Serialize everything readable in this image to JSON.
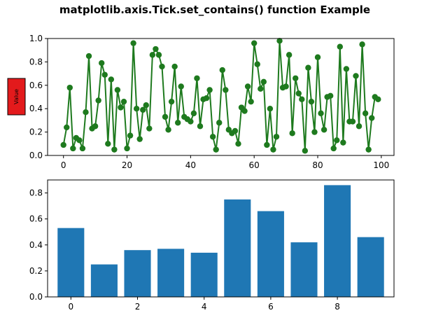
{
  "figure": {
    "title": "matplotlib.axis.Tick.set_contains() function Example",
    "ylabel_box": {
      "text": "Value",
      "face_color": "#e31a1c",
      "edge_color": "#000000"
    }
  },
  "chart_data": [
    {
      "type": "line",
      "name": "line-chart",
      "color": "#1e7a1e",
      "marker": "circle",
      "xlim": [
        -5,
        104
      ],
      "ylim": [
        0,
        1.0
      ],
      "xticks": [
        0,
        20,
        40,
        60,
        80,
        100
      ],
      "xtick_labels": [
        "0",
        "20",
        "40",
        "60",
        "80",
        "100"
      ],
      "yticks": [
        0.0,
        0.2,
        0.4,
        0.6,
        0.8,
        1.0
      ],
      "ytick_labels": [
        "0.0",
        "0.2",
        "0.4",
        "0.6",
        "0.8",
        "1.0"
      ],
      "grid": false,
      "series": [
        {
          "x": [
            0,
            1,
            2,
            3,
            4,
            5,
            6,
            7,
            8,
            9,
            10,
            11,
            12,
            13,
            14,
            15,
            16,
            17,
            18,
            19,
            20,
            21,
            22,
            23,
            24,
            25,
            26,
            27,
            28,
            29,
            30,
            31,
            32,
            33,
            34,
            35,
            36,
            37,
            38,
            39,
            40,
            41,
            42,
            43,
            44,
            45,
            46,
            47,
            48,
            49,
            50,
            51,
            52,
            53,
            54,
            55,
            56,
            57,
            58,
            59,
            60,
            61,
            62,
            63,
            64,
            65,
            66,
            67,
            68,
            69,
            70,
            71,
            72,
            73,
            74,
            75,
            76,
            77,
            78,
            79,
            80,
            81,
            82,
            83,
            84,
            85,
            86,
            87,
            88,
            89,
            90,
            91,
            92,
            93,
            94,
            95,
            96,
            97,
            98,
            99
          ],
          "y": [
            0.09,
            0.24,
            0.58,
            0.06,
            0.15,
            0.13,
            0.06,
            0.37,
            0.85,
            0.23,
            0.25,
            0.47,
            0.79,
            0.69,
            0.1,
            0.65,
            0.05,
            0.56,
            0.41,
            0.46,
            0.06,
            0.17,
            0.96,
            0.4,
            0.14,
            0.39,
            0.43,
            0.23,
            0.86,
            0.91,
            0.86,
            0.76,
            0.33,
            0.22,
            0.46,
            0.76,
            0.28,
            0.59,
            0.33,
            0.31,
            0.29,
            0.36,
            0.66,
            0.25,
            0.48,
            0.49,
            0.56,
            0.16,
            0.05,
            0.28,
            0.73,
            0.56,
            0.22,
            0.19,
            0.21,
            0.1,
            0.41,
            0.38,
            0.59,
            0.46,
            0.96,
            0.78,
            0.57,
            0.63,
            0.09,
            0.4,
            0.05,
            0.16,
            0.98,
            0.58,
            0.59,
            0.86,
            0.19,
            0.66,
            0.53,
            0.48,
            0.04,
            0.75,
            0.46,
            0.2,
            0.84,
            0.36,
            0.22,
            0.5,
            0.51,
            0.06,
            0.13,
            0.93,
            0.11,
            0.74,
            0.29,
            0.29,
            0.68,
            0.25,
            0.95,
            0.36,
            0.05,
            0.32,
            0.5,
            0.48
          ]
        }
      ]
    },
    {
      "type": "bar",
      "name": "bar-chart",
      "color": "#1f77b4",
      "xlim": [
        -0.7,
        9.7
      ],
      "ylim": [
        0,
        0.9
      ],
      "xticks": [
        0,
        2,
        4,
        6,
        8
      ],
      "xtick_labels": [
        "0",
        "2",
        "4",
        "6",
        "8"
      ],
      "yticks": [
        0.0,
        0.2,
        0.4,
        0.6,
        0.8
      ],
      "ytick_labels": [
        "0.0",
        "0.2",
        "0.4",
        "0.6",
        "0.8"
      ],
      "grid": false,
      "categories": [
        0,
        1,
        2,
        3,
        4,
        5,
        6,
        7,
        8,
        9
      ],
      "values": [
        0.53,
        0.25,
        0.36,
        0.37,
        0.34,
        0.75,
        0.66,
        0.42,
        0.86,
        0.46
      ]
    }
  ]
}
